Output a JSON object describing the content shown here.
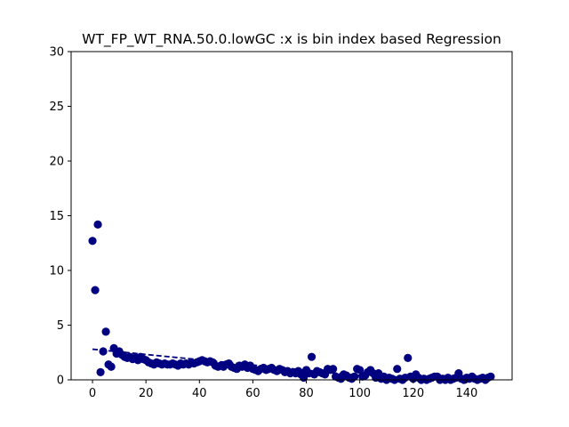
{
  "chart_data": {
    "type": "scatter",
    "title": "WT_FP_WT_RNA.50.0.lowGC :x is bin index based Regression",
    "xlabel": "",
    "ylabel": "",
    "xlim": [
      -8,
      157
    ],
    "ylim": [
      0,
      30
    ],
    "xticks": [
      0,
      20,
      40,
      60,
      80,
      100,
      120,
      140
    ],
    "yticks": [
      0,
      5,
      10,
      15,
      20,
      25,
      30
    ],
    "grid": false,
    "point_color": "#000080",
    "series": [
      {
        "x": [
          0,
          1,
          2,
          3,
          4,
          5,
          6,
          7,
          8,
          9,
          10,
          11,
          12,
          13,
          14,
          15,
          16,
          17,
          18,
          19,
          20,
          21,
          22,
          23,
          24,
          25,
          26,
          27,
          28,
          29,
          30,
          31,
          32,
          33,
          34,
          35,
          36,
          37,
          38,
          39,
          40,
          41,
          42,
          43,
          44,
          45,
          46,
          47,
          48,
          49,
          50,
          51,
          52,
          53,
          54,
          55,
          56,
          57,
          58,
          59,
          60,
          61,
          62,
          63,
          64,
          65,
          66,
          67,
          68,
          69,
          70,
          71,
          72,
          73,
          74,
          75,
          76,
          77,
          78,
          79,
          80,
          81,
          82,
          83,
          84,
          85,
          86,
          87,
          88,
          89,
          90,
          91,
          92,
          93,
          94,
          95,
          96,
          97,
          98,
          99,
          100,
          101,
          102,
          103,
          104,
          105,
          106,
          107,
          108,
          109,
          110,
          111,
          112,
          113,
          114,
          115,
          116,
          117,
          118,
          119,
          120,
          121,
          122,
          123,
          124,
          125,
          126,
          127,
          128,
          129,
          130,
          131,
          132,
          133,
          134,
          135,
          136,
          137,
          138,
          139,
          140,
          141,
          142,
          143,
          144,
          145,
          146,
          147,
          148,
          149
        ],
        "y": [
          12.7,
          8.2,
          14.2,
          0.7,
          2.6,
          4.4,
          1.4,
          1.2,
          2.9,
          2.4,
          2.6,
          2.3,
          2.1,
          2.0,
          2.1,
          1.9,
          2.0,
          1.8,
          2.1,
          1.9,
          1.8,
          1.6,
          1.5,
          1.4,
          1.6,
          1.5,
          1.4,
          1.5,
          1.4,
          1.4,
          1.5,
          1.4,
          1.3,
          1.5,
          1.4,
          1.5,
          1.4,
          1.6,
          1.5,
          1.6,
          1.7,
          1.8,
          1.7,
          1.6,
          1.7,
          1.6,
          1.3,
          1.2,
          1.3,
          1.2,
          1.4,
          1.5,
          1.2,
          1.1,
          1.0,
          1.3,
          1.2,
          1.4,
          1.1,
          1.3,
          1.0,
          0.9,
          0.8,
          1.0,
          1.1,
          0.9,
          1.0,
          1.1,
          0.9,
          0.8,
          1.0,
          0.9,
          0.7,
          0.8,
          0.6,
          0.7,
          0.6,
          0.8,
          0.5,
          0.2,
          0.9,
          0.6,
          2.1,
          0.5,
          0.8,
          0.7,
          0.6,
          0.5,
          1.0,
          0.9,
          1.0,
          0.3,
          0.2,
          0.1,
          0.5,
          0.4,
          0.2,
          0.1,
          0.3,
          1.0,
          0.9,
          0.3,
          0.4,
          0.7,
          0.9,
          0.6,
          0.2,
          0.6,
          0.1,
          0.3,
          0.0,
          0.2,
          0.1,
          0.0,
          1.0,
          0.1,
          0.0,
          0.2,
          2.0,
          0.3,
          0.1,
          0.5,
          0.2,
          0.0,
          0.1,
          0.0,
          0.1,
          0.2,
          0.3,
          0.3,
          0.0,
          0.1,
          0.0,
          0.2,
          0.0,
          0.1,
          0.2,
          0.6,
          0.1,
          0.0,
          0.2,
          0.1,
          0.3,
          0.1,
          0.0,
          0.1,
          0.2,
          0.0,
          0.2,
          0.3
        ]
      }
    ],
    "regression": {
      "x": [
        0,
        100
      ],
      "y": [
        2.8,
        0.4
      ],
      "style": "dashed"
    }
  }
}
